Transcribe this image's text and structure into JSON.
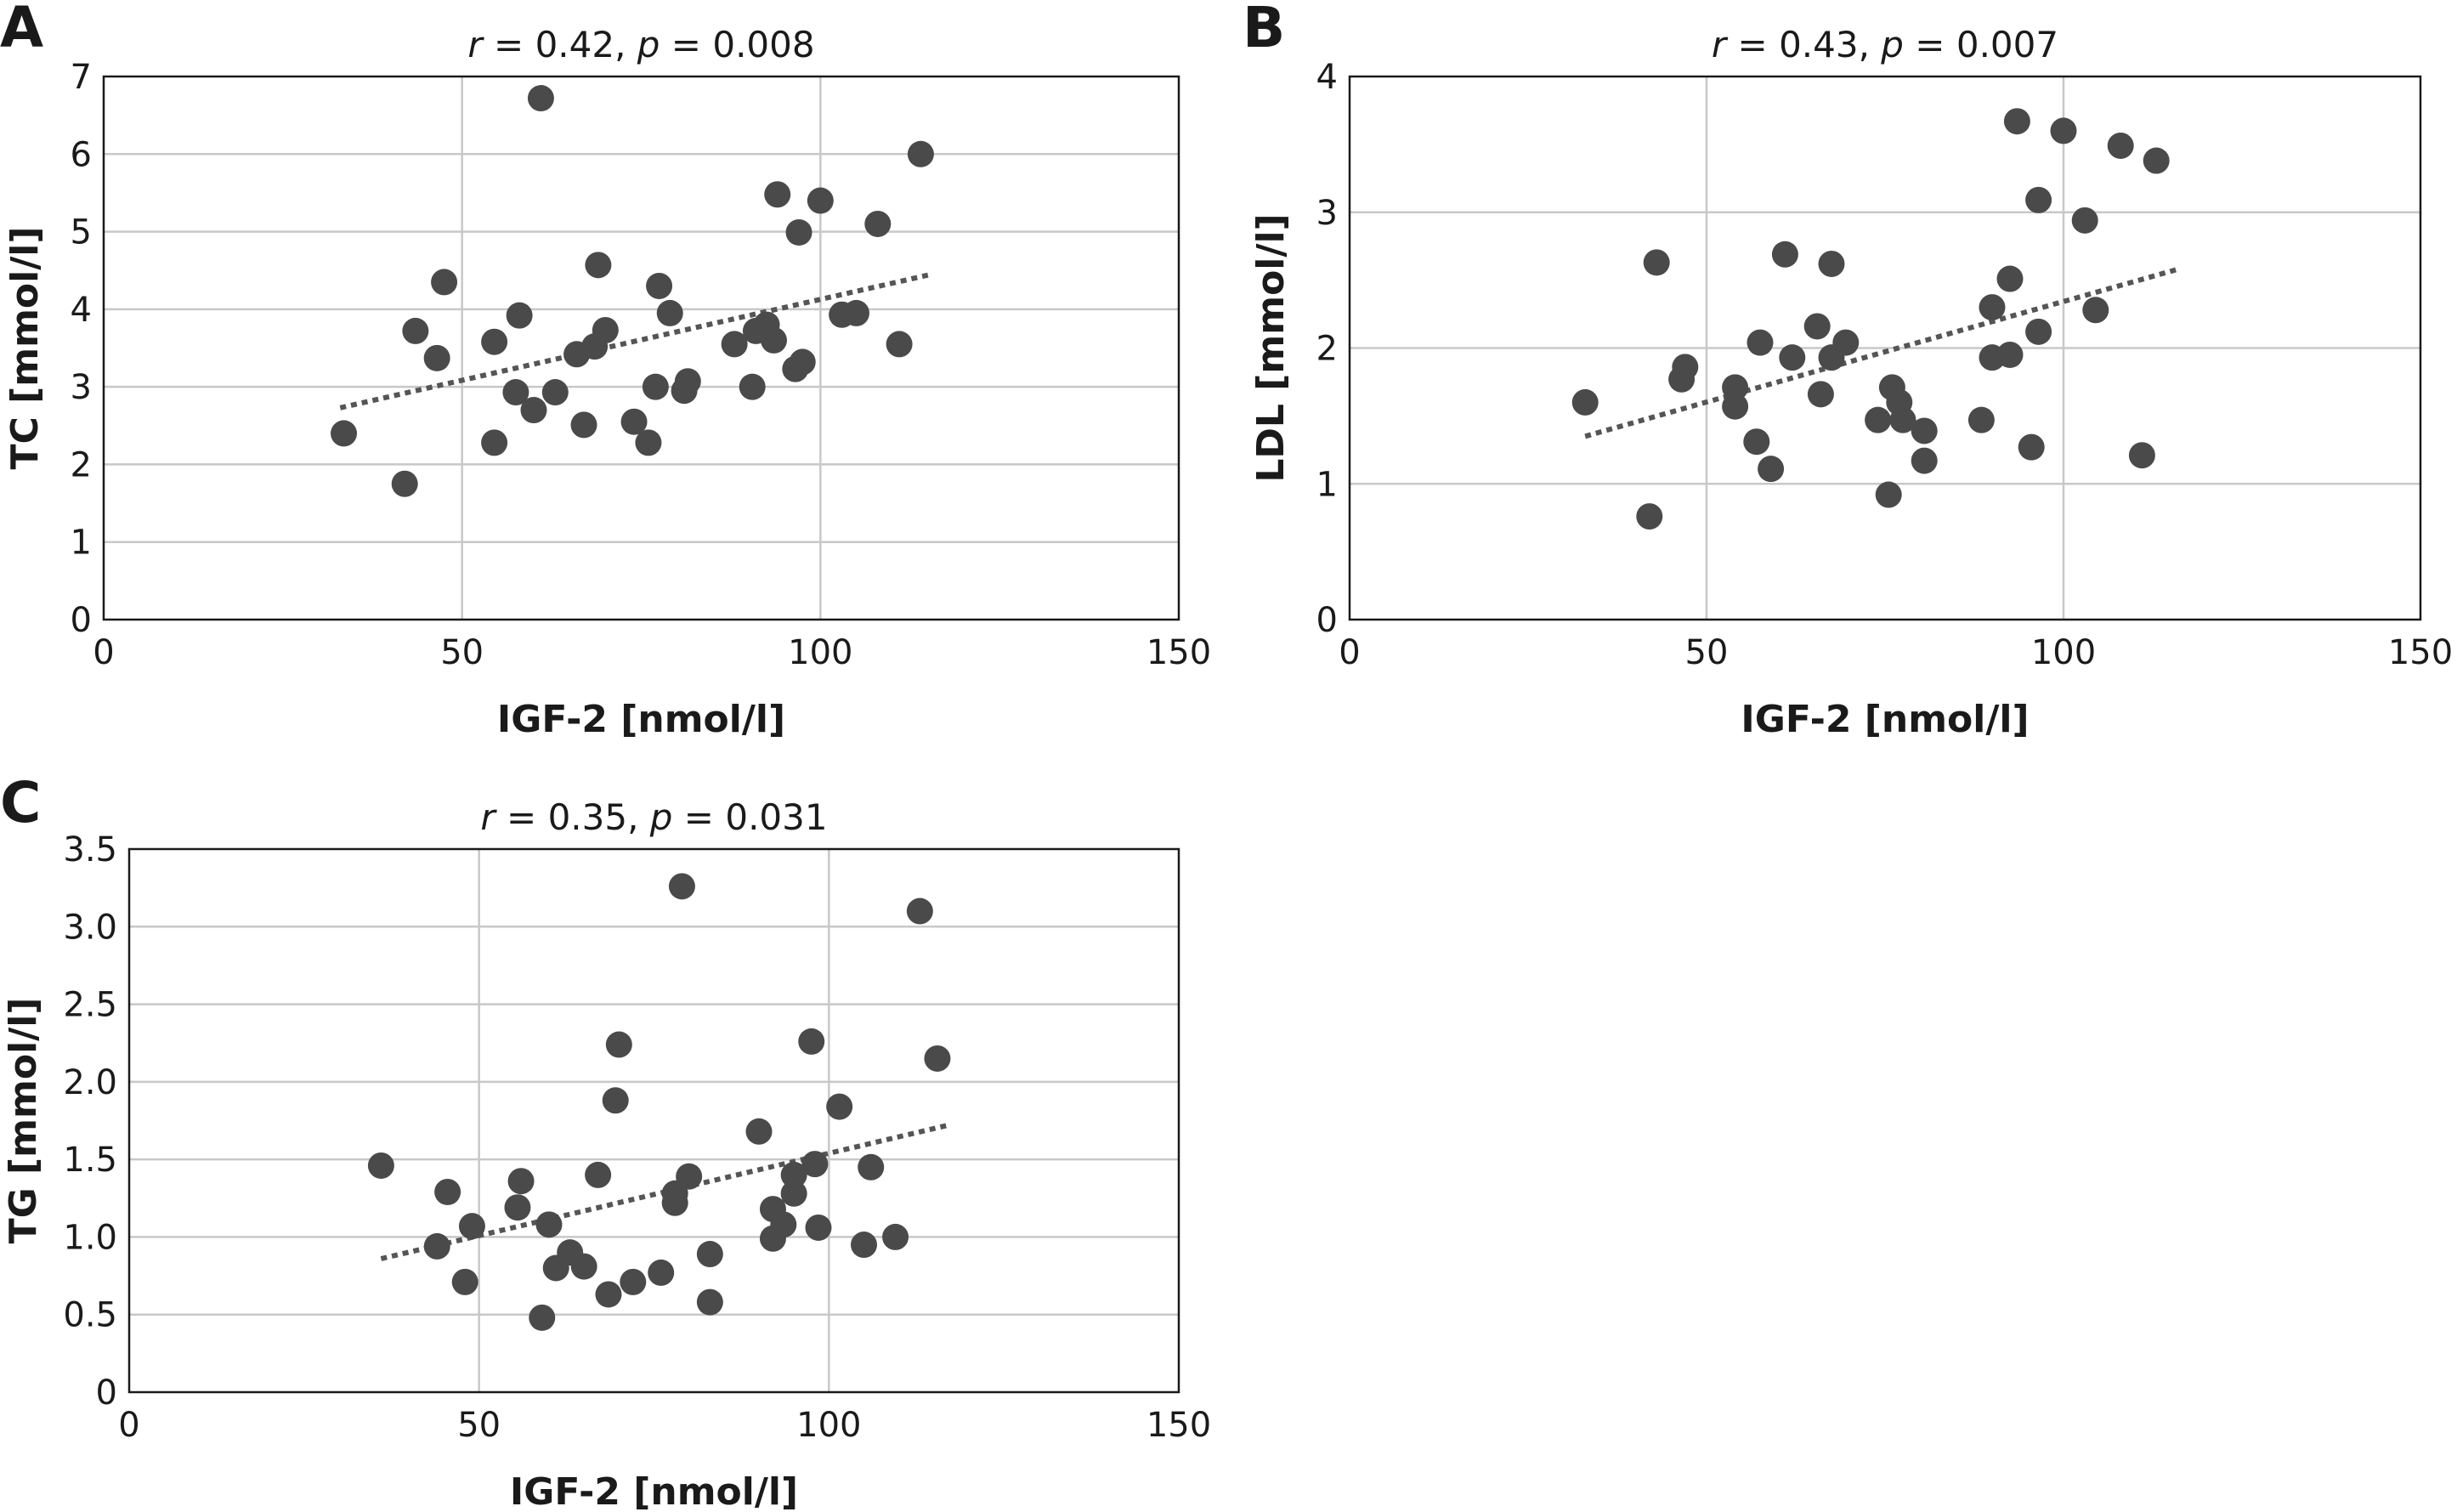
{
  "figure": {
    "colors": {
      "point": "#4a4a4a",
      "trend": "#555555",
      "grid": "#c8c8c8",
      "frame": "#1a1a1a"
    }
  },
  "chart_data": [
    {
      "panel": "A",
      "type": "scatter",
      "stat": {
        "r": "0.42",
        "p": "0.008"
      },
      "xlabel": "IGF-2 [nmol/l]",
      "ylabel": "TC [mmol/l]",
      "xlim": [
        0,
        150
      ],
      "ylim": [
        0,
        7
      ],
      "xticks": [
        "0",
        "50",
        "100",
        "150"
      ],
      "yticks": [
        "0",
        "1",
        "2",
        "3",
        "4",
        "5",
        "6",
        "7"
      ],
      "grid": true,
      "trendline": {
        "x": [
          33,
          115
        ],
        "y": [
          2.73,
          4.44
        ]
      },
      "points": [
        [
          33.5,
          2.4
        ],
        [
          42,
          1.75
        ],
        [
          43.5,
          3.72
        ],
        [
          46.5,
          3.37
        ],
        [
          47.5,
          4.35
        ],
        [
          54.5,
          3.58
        ],
        [
          54.5,
          2.28
        ],
        [
          57.5,
          2.93
        ],
        [
          58,
          3.92
        ],
        [
          60,
          2.7
        ],
        [
          61,
          6.72
        ],
        [
          63,
          2.93
        ],
        [
          66,
          3.42
        ],
        [
          67,
          2.51
        ],
        [
          68.5,
          3.52
        ],
        [
          69,
          4.57
        ],
        [
          70,
          3.73
        ],
        [
          74,
          2.55
        ],
        [
          76,
          2.28
        ],
        [
          77,
          3.0
        ],
        [
          77.5,
          4.3
        ],
        [
          79,
          3.95
        ],
        [
          81,
          2.95
        ],
        [
          81.5,
          3.07
        ],
        [
          88,
          3.55
        ],
        [
          90.5,
          3.0
        ],
        [
          91,
          3.72
        ],
        [
          92.5,
          3.8
        ],
        [
          93.5,
          3.6
        ],
        [
          94,
          5.48
        ],
        [
          96.5,
          3.23
        ],
        [
          97,
          4.99
        ],
        [
          97.5,
          3.32
        ],
        [
          100,
          5.4
        ],
        [
          103,
          3.93
        ],
        [
          105,
          3.95
        ],
        [
          108,
          5.1
        ],
        [
          111,
          3.55
        ],
        [
          114,
          6.0
        ]
      ]
    },
    {
      "panel": "B",
      "type": "scatter",
      "stat": {
        "r": "0.43",
        "p": "0.007"
      },
      "xlabel": "IGF-2 [nmol/l]",
      "ylabel": "LDL [mmol/l]",
      "xlim": [
        0,
        150
      ],
      "ylim": [
        0,
        4
      ],
      "xticks": [
        "0",
        "50",
        "100",
        "150"
      ],
      "yticks": [
        "0",
        "1",
        "2",
        "3",
        "4"
      ],
      "grid": true,
      "trendline": {
        "x": [
          33,
          116
        ],
        "y": [
          1.35,
          2.58
        ]
      },
      "points": [
        [
          33,
          1.6
        ],
        [
          42,
          0.76
        ],
        [
          43,
          2.63
        ],
        [
          46.5,
          1.77
        ],
        [
          47,
          1.86
        ],
        [
          54,
          1.71
        ],
        [
          54,
          1.57
        ],
        [
          57,
          1.31
        ],
        [
          57.5,
          2.04
        ],
        [
          59,
          1.11
        ],
        [
          61,
          2.69
        ],
        [
          62,
          1.93
        ],
        [
          65.5,
          2.16
        ],
        [
          66,
          1.66
        ],
        [
          67.5,
          1.93
        ],
        [
          67.5,
          2.62
        ],
        [
          69.5,
          2.04
        ],
        [
          74,
          1.47
        ],
        [
          75.5,
          0.92
        ],
        [
          76,
          1.71
        ],
        [
          77,
          1.6
        ],
        [
          77.5,
          1.47
        ],
        [
          80.5,
          1.39
        ],
        [
          80.5,
          1.17
        ],
        [
          88.5,
          1.47
        ],
        [
          90,
          1.93
        ],
        [
          90,
          2.3
        ],
        [
          92.5,
          1.95
        ],
        [
          92.5,
          2.51
        ],
        [
          93.5,
          3.67
        ],
        [
          95.5,
          1.27
        ],
        [
          96.5,
          3.09
        ],
        [
          96.5,
          2.12
        ],
        [
          100,
          3.6
        ],
        [
          103,
          2.94
        ],
        [
          104.5,
          2.28
        ],
        [
          108,
          3.49
        ],
        [
          111,
          1.21
        ],
        [
          113,
          3.38
        ]
      ]
    },
    {
      "panel": "C",
      "type": "scatter",
      "stat": {
        "r": "0.35",
        "p": "0.031"
      },
      "xlabel": "IGF-2 [nmol/l]",
      "ylabel": "TG [mmol/l]",
      "xlim": [
        0,
        150
      ],
      "ylim": [
        0,
        3.5
      ],
      "xticks": [
        "0",
        "50",
        "100",
        "150"
      ],
      "yticks": [
        "0",
        "0.5",
        "1.0",
        "1.5",
        "2.0",
        "2.5",
        "3.0",
        "3.5"
      ],
      "grid": true,
      "trendline": {
        "x": [
          36,
          117
        ],
        "y": [
          0.86,
          1.72
        ]
      },
      "points": [
        [
          36,
          1.46
        ],
        [
          44,
          0.94
        ],
        [
          45.5,
          1.29
        ],
        [
          48,
          0.71
        ],
        [
          49,
          1.07
        ],
        [
          55.5,
          1.19
        ],
        [
          56,
          1.36
        ],
        [
          59,
          0.48
        ],
        [
          60,
          1.08
        ],
        [
          61,
          0.8
        ],
        [
          63,
          0.9
        ],
        [
          65,
          0.81
        ],
        [
          67,
          1.4
        ],
        [
          68.5,
          0.63
        ],
        [
          69.5,
          1.88
        ],
        [
          70,
          2.24
        ],
        [
          72,
          0.71
        ],
        [
          76,
          0.77
        ],
        [
          78,
          1.22
        ],
        [
          78,
          1.28
        ],
        [
          79,
          3.26
        ],
        [
          80,
          1.39
        ],
        [
          83,
          0.58
        ],
        [
          83,
          0.89
        ],
        [
          90,
          1.68
        ],
        [
          92,
          0.99
        ],
        [
          92,
          1.18
        ],
        [
          93.5,
          1.08
        ],
        [
          95,
          1.28
        ],
        [
          95,
          1.4
        ],
        [
          97.5,
          2.26
        ],
        [
          98,
          1.47
        ],
        [
          98.5,
          1.06
        ],
        [
          101.5,
          1.84
        ],
        [
          105,
          0.95
        ],
        [
          106,
          1.45
        ],
        [
          109.5,
          1.0
        ],
        [
          113,
          3.1
        ],
        [
          115.5,
          2.15
        ]
      ]
    }
  ]
}
